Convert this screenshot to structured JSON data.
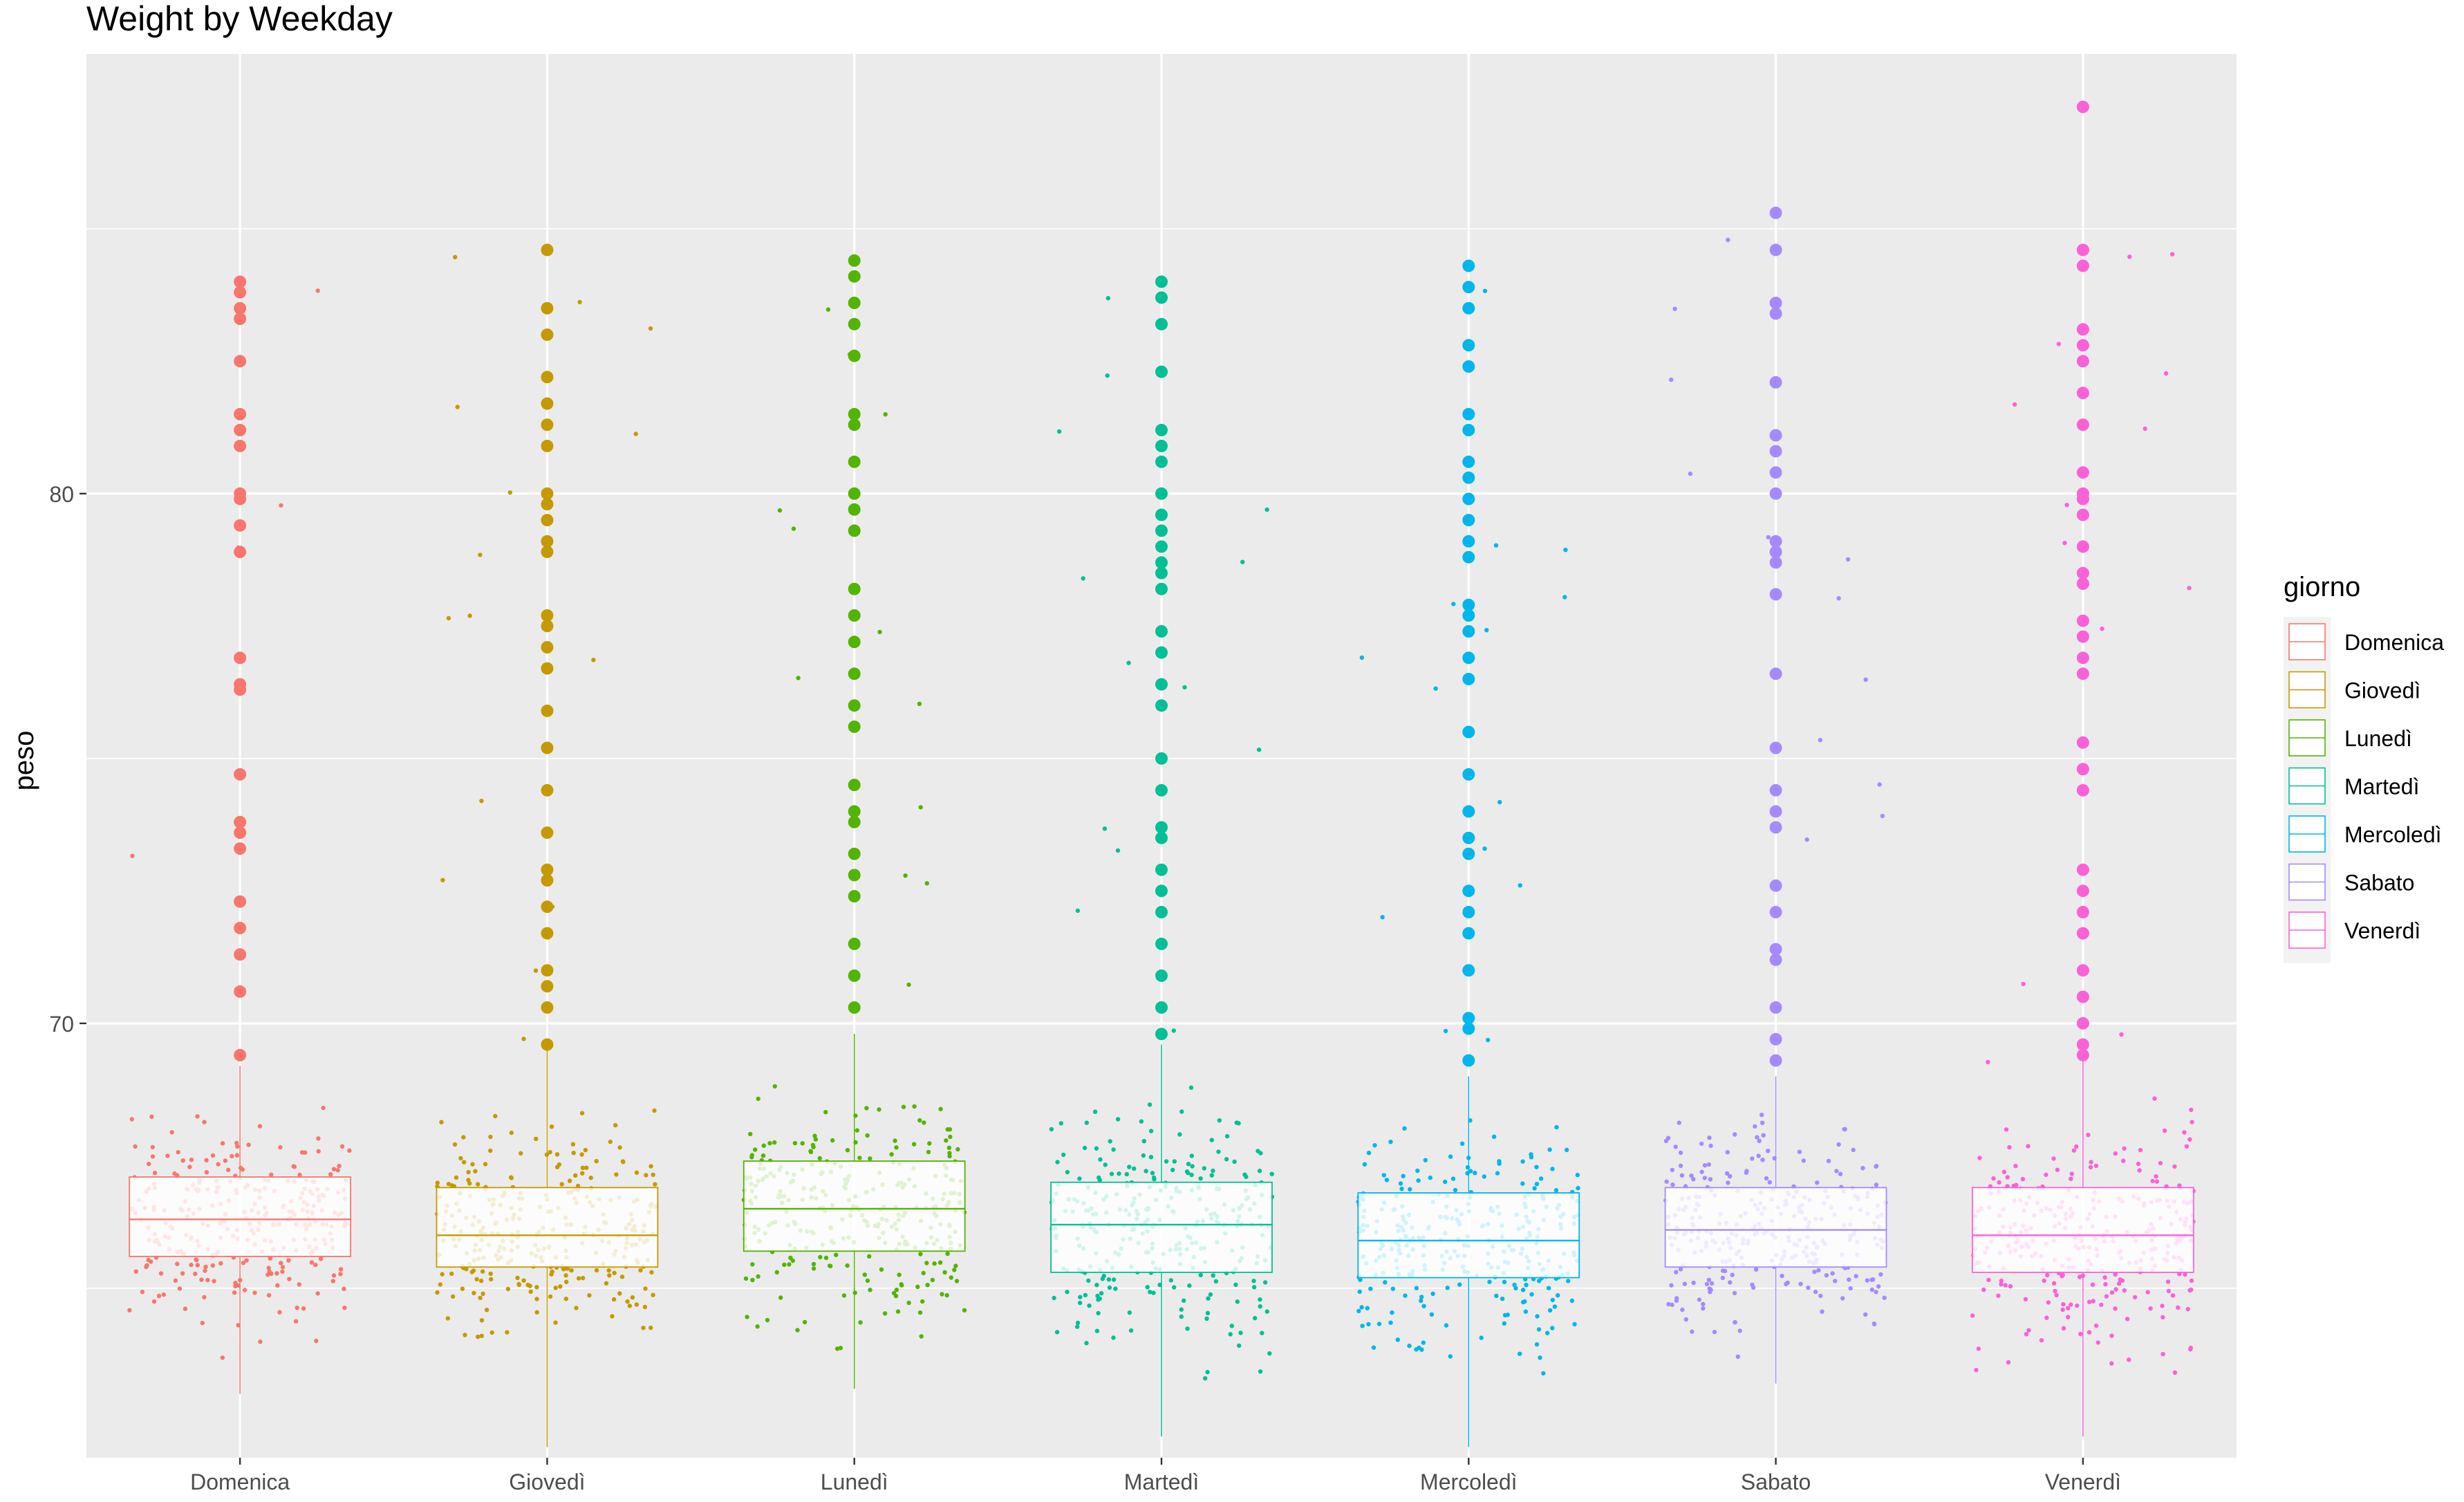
{
  "chart_data": {
    "type": "box",
    "title": "Weight by Weekday",
    "xlabel": "",
    "ylabel": "peso",
    "ylim": [
      61.8,
      88.3
    ],
    "yticks": [
      70,
      80
    ],
    "grid": true,
    "legend": {
      "title": "giorno",
      "placement": "right"
    },
    "categories": [
      "Domenica",
      "Giovedì",
      "Lunedì",
      "Martedì",
      "Mercoledì",
      "Sabato",
      "Venerdì"
    ],
    "colors": [
      "#F8766D",
      "#C49A00",
      "#53B400",
      "#00C094",
      "#00B6EB",
      "#A58AFF",
      "#FB61D7"
    ],
    "boxes": [
      {
        "category": "Domenica",
        "q1": 65.6,
        "median": 66.3,
        "q3": 67.1,
        "whisker_low": 63.0,
        "whisker_high": 69.2
      },
      {
        "category": "Giovedì",
        "q1": 65.4,
        "median": 66.0,
        "q3": 66.9,
        "whisker_low": 62.0,
        "whisker_high": 69.5
      },
      {
        "category": "Lunedì",
        "q1": 65.7,
        "median": 66.5,
        "q3": 67.4,
        "whisker_low": 63.1,
        "whisker_high": 69.8
      },
      {
        "category": "Martedì",
        "q1": 65.3,
        "median": 66.2,
        "q3": 67.0,
        "whisker_low": 62.2,
        "whisker_high": 69.6
      },
      {
        "category": "Mercoledì",
        "q1": 65.2,
        "median": 65.9,
        "q3": 66.8,
        "whisker_low": 62.0,
        "whisker_high": 69.0
      },
      {
        "category": "Sabato",
        "q1": 65.4,
        "median": 66.1,
        "q3": 66.9,
        "whisker_low": 63.2,
        "whisker_high": 69.0
      },
      {
        "category": "Venerdì",
        "q1": 65.3,
        "median": 66.0,
        "q3": 66.9,
        "whisker_low": 62.2,
        "whisker_high": 69.4
      }
    ],
    "outliers": [
      {
        "category": "Domenica",
        "values": [
          84.0,
          83.8,
          83.5,
          83.3,
          82.5,
          81.5,
          81.2,
          80.9,
          80.0,
          79.9,
          79.4,
          78.9,
          76.9,
          76.4,
          76.3,
          74.7,
          73.8,
          73.6,
          73.3,
          72.3,
          71.8,
          71.3,
          70.6,
          69.4
        ]
      },
      {
        "category": "Giovedì",
        "values": [
          84.6,
          83.5,
          83.0,
          82.2,
          81.7,
          81.3,
          80.9,
          80.0,
          79.8,
          79.5,
          79.1,
          78.9,
          77.7,
          77.5,
          77.1,
          76.7,
          75.9,
          75.2,
          74.4,
          73.6,
          72.9,
          72.7,
          72.2,
          71.7,
          71.0,
          70.7,
          70.3,
          69.6
        ]
      },
      {
        "category": "Lunedì",
        "values": [
          84.4,
          84.1,
          83.6,
          83.2,
          82.6,
          81.5,
          81.3,
          80.6,
          80.0,
          79.7,
          79.3,
          78.2,
          77.7,
          77.2,
          76.6,
          76.0,
          75.6,
          74.5,
          74.0,
          73.8,
          73.2,
          72.8,
          72.4,
          71.5,
          70.9,
          70.3
        ]
      },
      {
        "category": "Martedì",
        "values": [
          84.0,
          83.7,
          83.2,
          82.3,
          81.2,
          80.9,
          80.6,
          80.0,
          79.6,
          79.3,
          79.0,
          78.7,
          78.5,
          78.2,
          77.4,
          77.0,
          76.4,
          76.0,
          75.0,
          74.4,
          73.7,
          73.5,
          72.9,
          72.5,
          72.1,
          71.5,
          70.9,
          70.3,
          69.8
        ]
      },
      {
        "category": "Mercoledì",
        "values": [
          84.3,
          83.9,
          83.5,
          82.8,
          82.4,
          81.5,
          81.2,
          80.6,
          80.3,
          79.9,
          79.5,
          79.1,
          78.8,
          77.9,
          77.7,
          77.4,
          76.9,
          76.5,
          75.5,
          74.7,
          74.0,
          73.5,
          73.2,
          72.5,
          72.1,
          71.7,
          71.0,
          70.1,
          69.9,
          69.3
        ]
      },
      {
        "category": "Sabato",
        "values": [
          85.3,
          84.6,
          83.6,
          83.4,
          82.1,
          81.1,
          80.8,
          80.4,
          80.0,
          79.1,
          78.9,
          78.7,
          78.1,
          76.6,
          75.2,
          74.4,
          74.0,
          73.7,
          72.6,
          72.1,
          71.4,
          71.2,
          70.3,
          69.7,
          69.3
        ]
      },
      {
        "category": "Venerdì",
        "values": [
          87.3,
          84.6,
          84.3,
          83.1,
          82.8,
          82.5,
          81.9,
          81.3,
          80.4,
          80.0,
          79.9,
          79.6,
          79.0,
          78.5,
          78.3,
          77.6,
          77.3,
          76.9,
          76.6,
          75.3,
          74.8,
          74.4,
          72.9,
          72.5,
          72.1,
          71.7,
          71.0,
          70.5,
          70.0,
          69.6,
          69.4
        ]
      }
    ]
  }
}
